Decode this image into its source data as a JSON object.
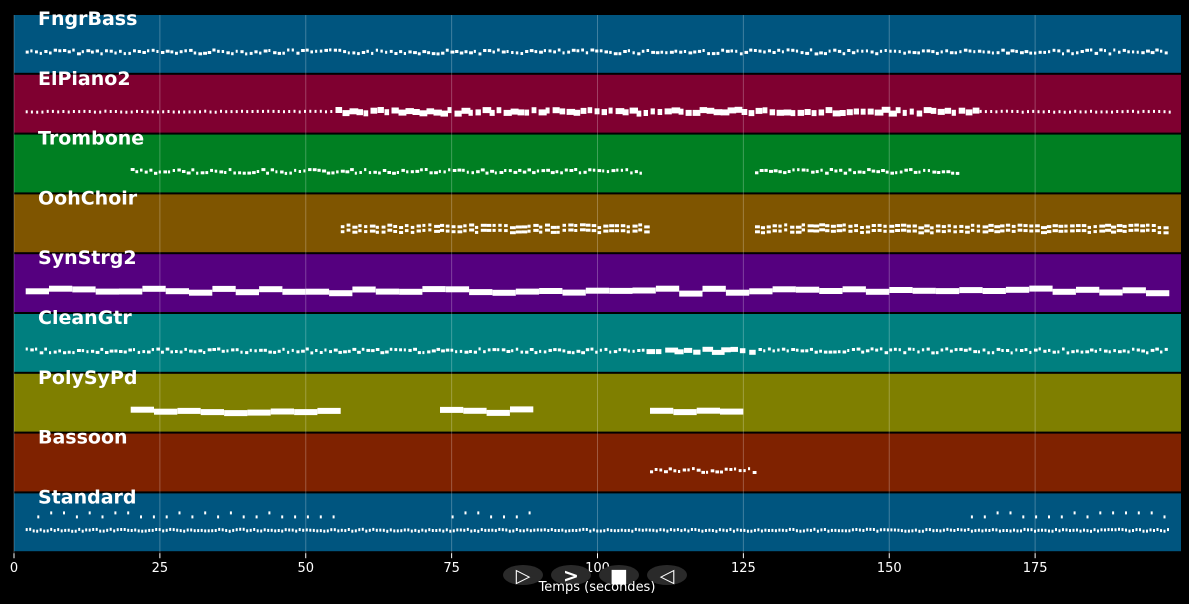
{
  "chart_data": {
    "type": "pianoroll",
    "xlabel": "Temps (secondes)",
    "xlim": [
      0,
      200
    ],
    "xticks": [
      0,
      25,
      50,
      75,
      100,
      125,
      150,
      175
    ],
    "grid": true,
    "tracks": [
      {
        "name": "FngrBass",
        "color": "#00557f",
        "pattern": "dots",
        "segments": [
          [
            2,
            198
          ]
        ]
      },
      {
        "name": "ElPiano2",
        "color": "#7f0030",
        "pattern": "blocks",
        "segments": [
          [
            2,
            198
          ]
        ],
        "dense": [
          [
            55,
            165
          ]
        ]
      },
      {
        "name": "Trombone",
        "color": "#007f22",
        "pattern": "dots",
        "segments": [
          [
            20,
            108
          ],
          [
            127,
            162
          ]
        ]
      },
      {
        "name": "OohChoir",
        "color": "#7f5500",
        "pattern": "double",
        "segments": [
          [
            56,
            73
          ],
          [
            73,
            91
          ],
          [
            91,
            109
          ],
          [
            127,
            163
          ],
          [
            163,
            198
          ]
        ]
      },
      {
        "name": "SynStrg2",
        "color": "#55007f",
        "pattern": "bars",
        "segments": [
          [
            2,
            198
          ]
        ]
      },
      {
        "name": "CleanGtr",
        "color": "#007f7f",
        "pattern": "dots",
        "segments": [
          [
            2,
            198
          ]
        ],
        "dense": [
          [
            108,
            126
          ]
        ]
      },
      {
        "name": "PolySyPd",
        "color": "#7f7f00",
        "pattern": "bars",
        "segments": [
          [
            20,
            56
          ],
          [
            73,
            91
          ],
          [
            109,
            127
          ]
        ]
      },
      {
        "name": "Bassoon",
        "color": "#7f2200",
        "pattern": "dots",
        "segments": [
          [
            109,
            127
          ]
        ]
      },
      {
        "name": "Standard",
        "color": "#00557f",
        "pattern": "drums",
        "segments": [
          [
            2,
            198
          ]
        ],
        "upper": [
          [
            4,
            56
          ],
          [
            75,
            90
          ],
          [
            164,
            198
          ]
        ]
      }
    ]
  },
  "controls": [
    {
      "name": "play-button",
      "glyph": "▷"
    },
    {
      "name": "forward-button",
      "glyph": ">"
    },
    {
      "name": "stop-button",
      "glyph": "■"
    },
    {
      "name": "back-button",
      "glyph": "◁"
    }
  ]
}
